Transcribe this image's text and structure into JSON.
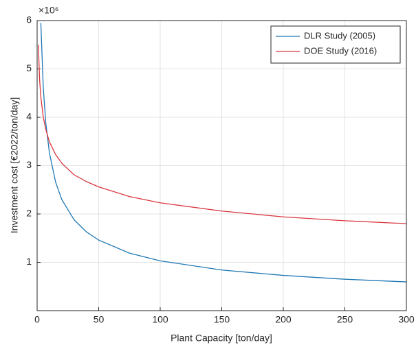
{
  "chart_data": {
    "type": "line",
    "xlabel": "Plant Capacity [ton/day]",
    "ylabel": "Investment cost [€2022/ton/day]",
    "y_exponent": "×10⁶",
    "x": [
      1,
      2,
      3,
      5,
      7,
      10,
      15,
      20,
      30,
      40,
      50,
      75,
      100,
      150,
      200,
      250,
      300
    ],
    "series": [
      {
        "name": "DLR Study (2005)",
        "color": "#1f77b4",
        "values": [
          null,
          null,
          5.95,
          4.61,
          3.89,
          3.26,
          2.66,
          2.3,
          1.88,
          1.63,
          1.46,
          1.19,
          1.03,
          0.84,
          0.73,
          0.65,
          0.595
        ]
      },
      {
        "name": "DOE Study (2016)",
        "color": "#d9363e",
        "values": [
          5.5,
          4.78,
          4.42,
          4.0,
          3.75,
          3.49,
          3.23,
          3.05,
          2.81,
          2.67,
          2.56,
          2.36,
          2.23,
          2.06,
          1.94,
          1.86,
          1.8
        ]
      }
    ],
    "xlim": [
      0,
      300
    ],
    "xticks": [
      0,
      50,
      100,
      150,
      200,
      250,
      300
    ],
    "ylim": [
      0,
      6
    ],
    "yticks": [
      1,
      2,
      3,
      4,
      5,
      6
    ],
    "grid": true,
    "legend": "top-right"
  }
}
